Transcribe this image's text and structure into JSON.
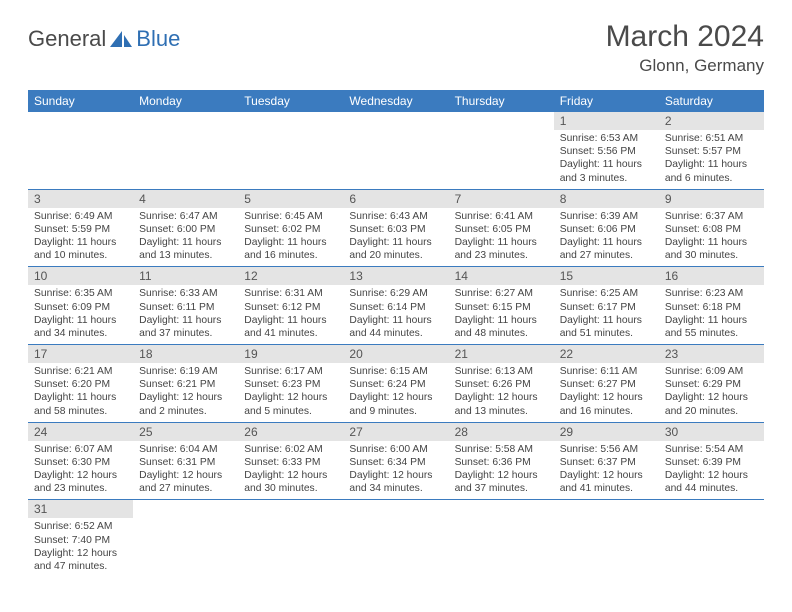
{
  "brand": {
    "part1": "General",
    "part2": "Blue",
    "color1": "#4a4a4a",
    "color2": "#2f6fb3"
  },
  "header": {
    "month": "March 2024",
    "location": "Glonn, Germany"
  },
  "style": {
    "header_bg": "#3b7bbf",
    "header_fg": "#ffffff",
    "daynum_bg": "#e4e4e4",
    "row_border": "#3b7bbf",
    "page_bg": "#ffffff",
    "text_color": "#444444",
    "month_fontsize": 30,
    "location_fontsize": 17,
    "cell_fontsize": 10.3
  },
  "weekdays": [
    "Sunday",
    "Monday",
    "Tuesday",
    "Wednesday",
    "Thursday",
    "Friday",
    "Saturday"
  ],
  "weeks": [
    [
      null,
      null,
      null,
      null,
      null,
      {
        "n": "1",
        "sr": "6:53 AM",
        "ss": "5:56 PM",
        "dl": "11 hours and 3 minutes."
      },
      {
        "n": "2",
        "sr": "6:51 AM",
        "ss": "5:57 PM",
        "dl": "11 hours and 6 minutes."
      }
    ],
    [
      {
        "n": "3",
        "sr": "6:49 AM",
        "ss": "5:59 PM",
        "dl": "11 hours and 10 minutes."
      },
      {
        "n": "4",
        "sr": "6:47 AM",
        "ss": "6:00 PM",
        "dl": "11 hours and 13 minutes."
      },
      {
        "n": "5",
        "sr": "6:45 AM",
        "ss": "6:02 PM",
        "dl": "11 hours and 16 minutes."
      },
      {
        "n": "6",
        "sr": "6:43 AM",
        "ss": "6:03 PM",
        "dl": "11 hours and 20 minutes."
      },
      {
        "n": "7",
        "sr": "6:41 AM",
        "ss": "6:05 PM",
        "dl": "11 hours and 23 minutes."
      },
      {
        "n": "8",
        "sr": "6:39 AM",
        "ss": "6:06 PM",
        "dl": "11 hours and 27 minutes."
      },
      {
        "n": "9",
        "sr": "6:37 AM",
        "ss": "6:08 PM",
        "dl": "11 hours and 30 minutes."
      }
    ],
    [
      {
        "n": "10",
        "sr": "6:35 AM",
        "ss": "6:09 PM",
        "dl": "11 hours and 34 minutes."
      },
      {
        "n": "11",
        "sr": "6:33 AM",
        "ss": "6:11 PM",
        "dl": "11 hours and 37 minutes."
      },
      {
        "n": "12",
        "sr": "6:31 AM",
        "ss": "6:12 PM",
        "dl": "11 hours and 41 minutes."
      },
      {
        "n": "13",
        "sr": "6:29 AM",
        "ss": "6:14 PM",
        "dl": "11 hours and 44 minutes."
      },
      {
        "n": "14",
        "sr": "6:27 AM",
        "ss": "6:15 PM",
        "dl": "11 hours and 48 minutes."
      },
      {
        "n": "15",
        "sr": "6:25 AM",
        "ss": "6:17 PM",
        "dl": "11 hours and 51 minutes."
      },
      {
        "n": "16",
        "sr": "6:23 AM",
        "ss": "6:18 PM",
        "dl": "11 hours and 55 minutes."
      }
    ],
    [
      {
        "n": "17",
        "sr": "6:21 AM",
        "ss": "6:20 PM",
        "dl": "11 hours and 58 minutes."
      },
      {
        "n": "18",
        "sr": "6:19 AM",
        "ss": "6:21 PM",
        "dl": "12 hours and 2 minutes."
      },
      {
        "n": "19",
        "sr": "6:17 AM",
        "ss": "6:23 PM",
        "dl": "12 hours and 5 minutes."
      },
      {
        "n": "20",
        "sr": "6:15 AM",
        "ss": "6:24 PM",
        "dl": "12 hours and 9 minutes."
      },
      {
        "n": "21",
        "sr": "6:13 AM",
        "ss": "6:26 PM",
        "dl": "12 hours and 13 minutes."
      },
      {
        "n": "22",
        "sr": "6:11 AM",
        "ss": "6:27 PM",
        "dl": "12 hours and 16 minutes."
      },
      {
        "n": "23",
        "sr": "6:09 AM",
        "ss": "6:29 PM",
        "dl": "12 hours and 20 minutes."
      }
    ],
    [
      {
        "n": "24",
        "sr": "6:07 AM",
        "ss": "6:30 PM",
        "dl": "12 hours and 23 minutes."
      },
      {
        "n": "25",
        "sr": "6:04 AM",
        "ss": "6:31 PM",
        "dl": "12 hours and 27 minutes."
      },
      {
        "n": "26",
        "sr": "6:02 AM",
        "ss": "6:33 PM",
        "dl": "12 hours and 30 minutes."
      },
      {
        "n": "27",
        "sr": "6:00 AM",
        "ss": "6:34 PM",
        "dl": "12 hours and 34 minutes."
      },
      {
        "n": "28",
        "sr": "5:58 AM",
        "ss": "6:36 PM",
        "dl": "12 hours and 37 minutes."
      },
      {
        "n": "29",
        "sr": "5:56 AM",
        "ss": "6:37 PM",
        "dl": "12 hours and 41 minutes."
      },
      {
        "n": "30",
        "sr": "5:54 AM",
        "ss": "6:39 PM",
        "dl": "12 hours and 44 minutes."
      }
    ],
    [
      {
        "n": "31",
        "sr": "6:52 AM",
        "ss": "7:40 PM",
        "dl": "12 hours and 47 minutes."
      },
      null,
      null,
      null,
      null,
      null,
      null
    ]
  ],
  "labels": {
    "sunrise": "Sunrise:",
    "sunset": "Sunset:",
    "daylight": "Daylight:"
  }
}
